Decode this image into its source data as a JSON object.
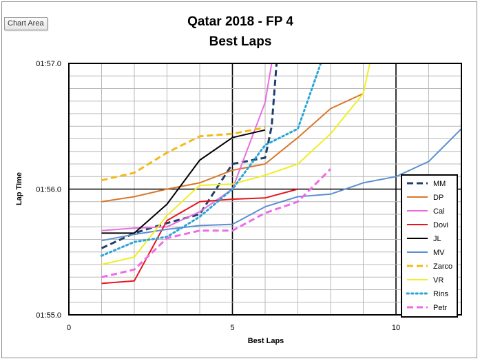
{
  "ui": {
    "chart_area_label": "Chart Area"
  },
  "chart_data": {
    "type": "line",
    "title": "Qatar 2018 - FP 4",
    "subtitle": "Best Laps",
    "xlabel": "Best Laps",
    "ylabel": "Lap Time",
    "xlim": [
      0,
      12
    ],
    "ylim": [
      115.0,
      117.0
    ],
    "x_ticks": [
      0,
      5,
      10
    ],
    "y_ticks": [
      {
        "value": 115.0,
        "label": "01:55.0"
      },
      {
        "value": 116.0,
        "label": "01:56.0"
      },
      {
        "value": 117.0,
        "label": "01:57.0"
      }
    ],
    "grid": true,
    "legend_position": "right",
    "series": [
      {
        "name": "MM",
        "color": "#1f3f6b",
        "dash": "dashed",
        "width": 3,
        "x": [
          1,
          2,
          3,
          4,
          5,
          6,
          6.2,
          6.35
        ],
        "y": [
          115.53,
          115.65,
          115.73,
          115.8,
          116.2,
          116.25,
          116.5,
          117.0
        ]
      },
      {
        "name": "DP",
        "color": "#d9772b",
        "dash": "solid",
        "width": 2,
        "x": [
          1,
          2,
          3,
          4,
          5,
          6,
          7,
          8,
          9
        ],
        "y": [
          115.9,
          115.94,
          116.0,
          116.05,
          116.15,
          116.2,
          116.41,
          116.64,
          116.76
        ]
      },
      {
        "name": "Cal",
        "color": "#e86ee0",
        "dash": "solid",
        "width": 2,
        "x": [
          1,
          2,
          3,
          4,
          5,
          6,
          6.2
        ],
        "y": [
          115.67,
          115.69,
          115.7,
          115.82,
          116.0,
          116.69,
          117.0
        ]
      },
      {
        "name": "Dovi",
        "color": "#e8141c",
        "dash": "solid",
        "width": 2,
        "x": [
          1,
          2,
          3,
          4,
          5,
          6,
          7
        ],
        "y": [
          115.25,
          115.27,
          115.75,
          115.9,
          115.92,
          115.93,
          116.0
        ]
      },
      {
        "name": "JL",
        "color": "#000000",
        "dash": "solid",
        "width": 2,
        "x": [
          1,
          2,
          3,
          4,
          5,
          6
        ],
        "y": [
          115.65,
          115.65,
          115.88,
          116.23,
          116.41,
          116.47
        ]
      },
      {
        "name": "MV",
        "color": "#5b8fd0",
        "dash": "solid",
        "width": 2,
        "x": [
          1,
          2,
          3,
          4,
          5,
          6,
          7,
          8,
          9,
          10,
          11,
          12
        ],
        "y": [
          115.59,
          115.64,
          115.68,
          115.71,
          115.72,
          115.86,
          115.94,
          115.96,
          116.05,
          116.1,
          116.22,
          116.48
        ]
      },
      {
        "name": "Zarco",
        "color": "#f5b818",
        "dash": "dashed",
        "width": 3,
        "x": [
          1,
          2,
          3,
          4,
          5,
          6
        ],
        "y": [
          116.07,
          116.13,
          116.29,
          116.42,
          116.44,
          116.49
        ]
      },
      {
        "name": "VR",
        "color": "#eeee22",
        "dash": "solid",
        "width": 2,
        "x": [
          1,
          2,
          3,
          4,
          5,
          6,
          7,
          8,
          9,
          9.2
        ],
        "y": [
          115.4,
          115.46,
          115.79,
          116.03,
          116.04,
          116.11,
          116.2,
          116.44,
          116.76,
          117.0
        ]
      },
      {
        "name": "Rins",
        "color": "#2aa6d6",
        "dash": "dotted",
        "width": 3,
        "x": [
          1,
          2,
          3,
          4,
          5,
          6,
          7,
          7.7
        ],
        "y": [
          115.47,
          115.58,
          115.62,
          115.78,
          116.0,
          116.35,
          116.48,
          117.0
        ]
      },
      {
        "name": "Petr",
        "color": "#f06ae8",
        "dash": "dashed",
        "width": 3,
        "x": [
          1,
          2,
          3,
          4,
          5,
          6,
          7,
          8
        ],
        "y": [
          115.3,
          115.36,
          115.61,
          115.67,
          115.67,
          115.81,
          115.9,
          116.16
        ]
      }
    ]
  }
}
